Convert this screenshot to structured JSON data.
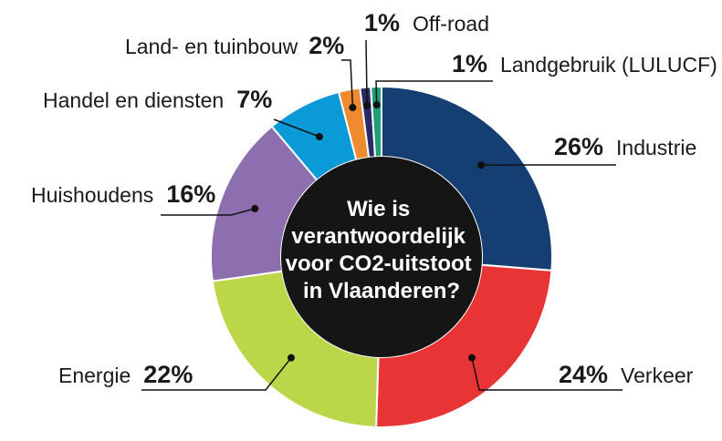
{
  "chart_data": {
    "type": "pie",
    "title": "Wie is verantwoordelijk voor CO2-uitstoot in Vlaanderen?",
    "title_lines": [
      "Wie is",
      "verantwoordelijk",
      "voor CO2-uitstoot",
      "in Vlaanderen?"
    ],
    "categories": [
      "Industrie",
      "Verkeer",
      "Energie",
      "Huishoudens",
      "Handel en diensten",
      "Land- en tuinbouw",
      "Off-road",
      "Landgebruik (LULUCF)"
    ],
    "values": [
      26,
      24,
      22,
      16,
      7,
      2,
      1,
      1
    ],
    "value_labels": [
      "26%",
      "24%",
      "22%",
      "16%",
      "7%",
      "2%",
      "1%",
      "1%"
    ],
    "colors": [
      "#153e72",
      "#e83434",
      "#bcd64a",
      "#8d6fb0",
      "#0a9ad8",
      "#f08a2e",
      "#2a2a6a",
      "#1f9f78"
    ],
    "center_color": "#151515",
    "legend": "none",
    "style": "donut"
  }
}
